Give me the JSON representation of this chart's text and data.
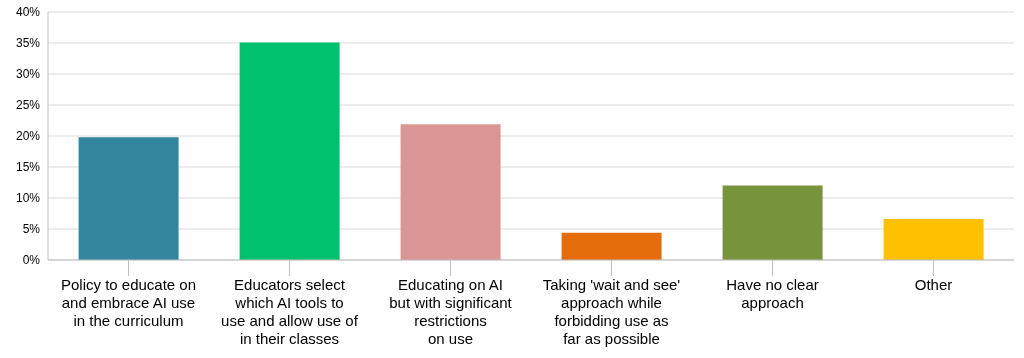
{
  "chart_data": {
    "type": "bar",
    "categories": [
      "Policy to educate on\nand embrace AI use\nin the curriculum",
      "Educators select\nwhich AI tools to\nuse and allow use of\nin their classes",
      "Educating on AI\nbut with significant\nrestrictions\non use",
      "Taking 'wait and see'\napproach while\nforbidding use as\nfar as possible",
      "Have no clear\napproach",
      "Other"
    ],
    "values": [
      19.8,
      35.1,
      21.9,
      4.4,
      12.0,
      6.6
    ],
    "colors": [
      "#31859c",
      "#00c16e",
      "#d99694",
      "#e46c0a",
      "#77933c",
      "#ffc000"
    ],
    "ylim": [
      0,
      40
    ],
    "yticks": [
      {
        "value": 0,
        "label": "0%"
      },
      {
        "value": 5,
        "label": "5%"
      },
      {
        "value": 10,
        "label": "10%"
      },
      {
        "value": 15,
        "label": "15%"
      },
      {
        "value": 20,
        "label": "20%"
      },
      {
        "value": 25,
        "label": "25%"
      },
      {
        "value": 30,
        "label": "30%"
      },
      {
        "value": 35,
        "label": "35%"
      },
      {
        "value": 40,
        "label": "40%"
      }
    ],
    "grid": "y"
  }
}
